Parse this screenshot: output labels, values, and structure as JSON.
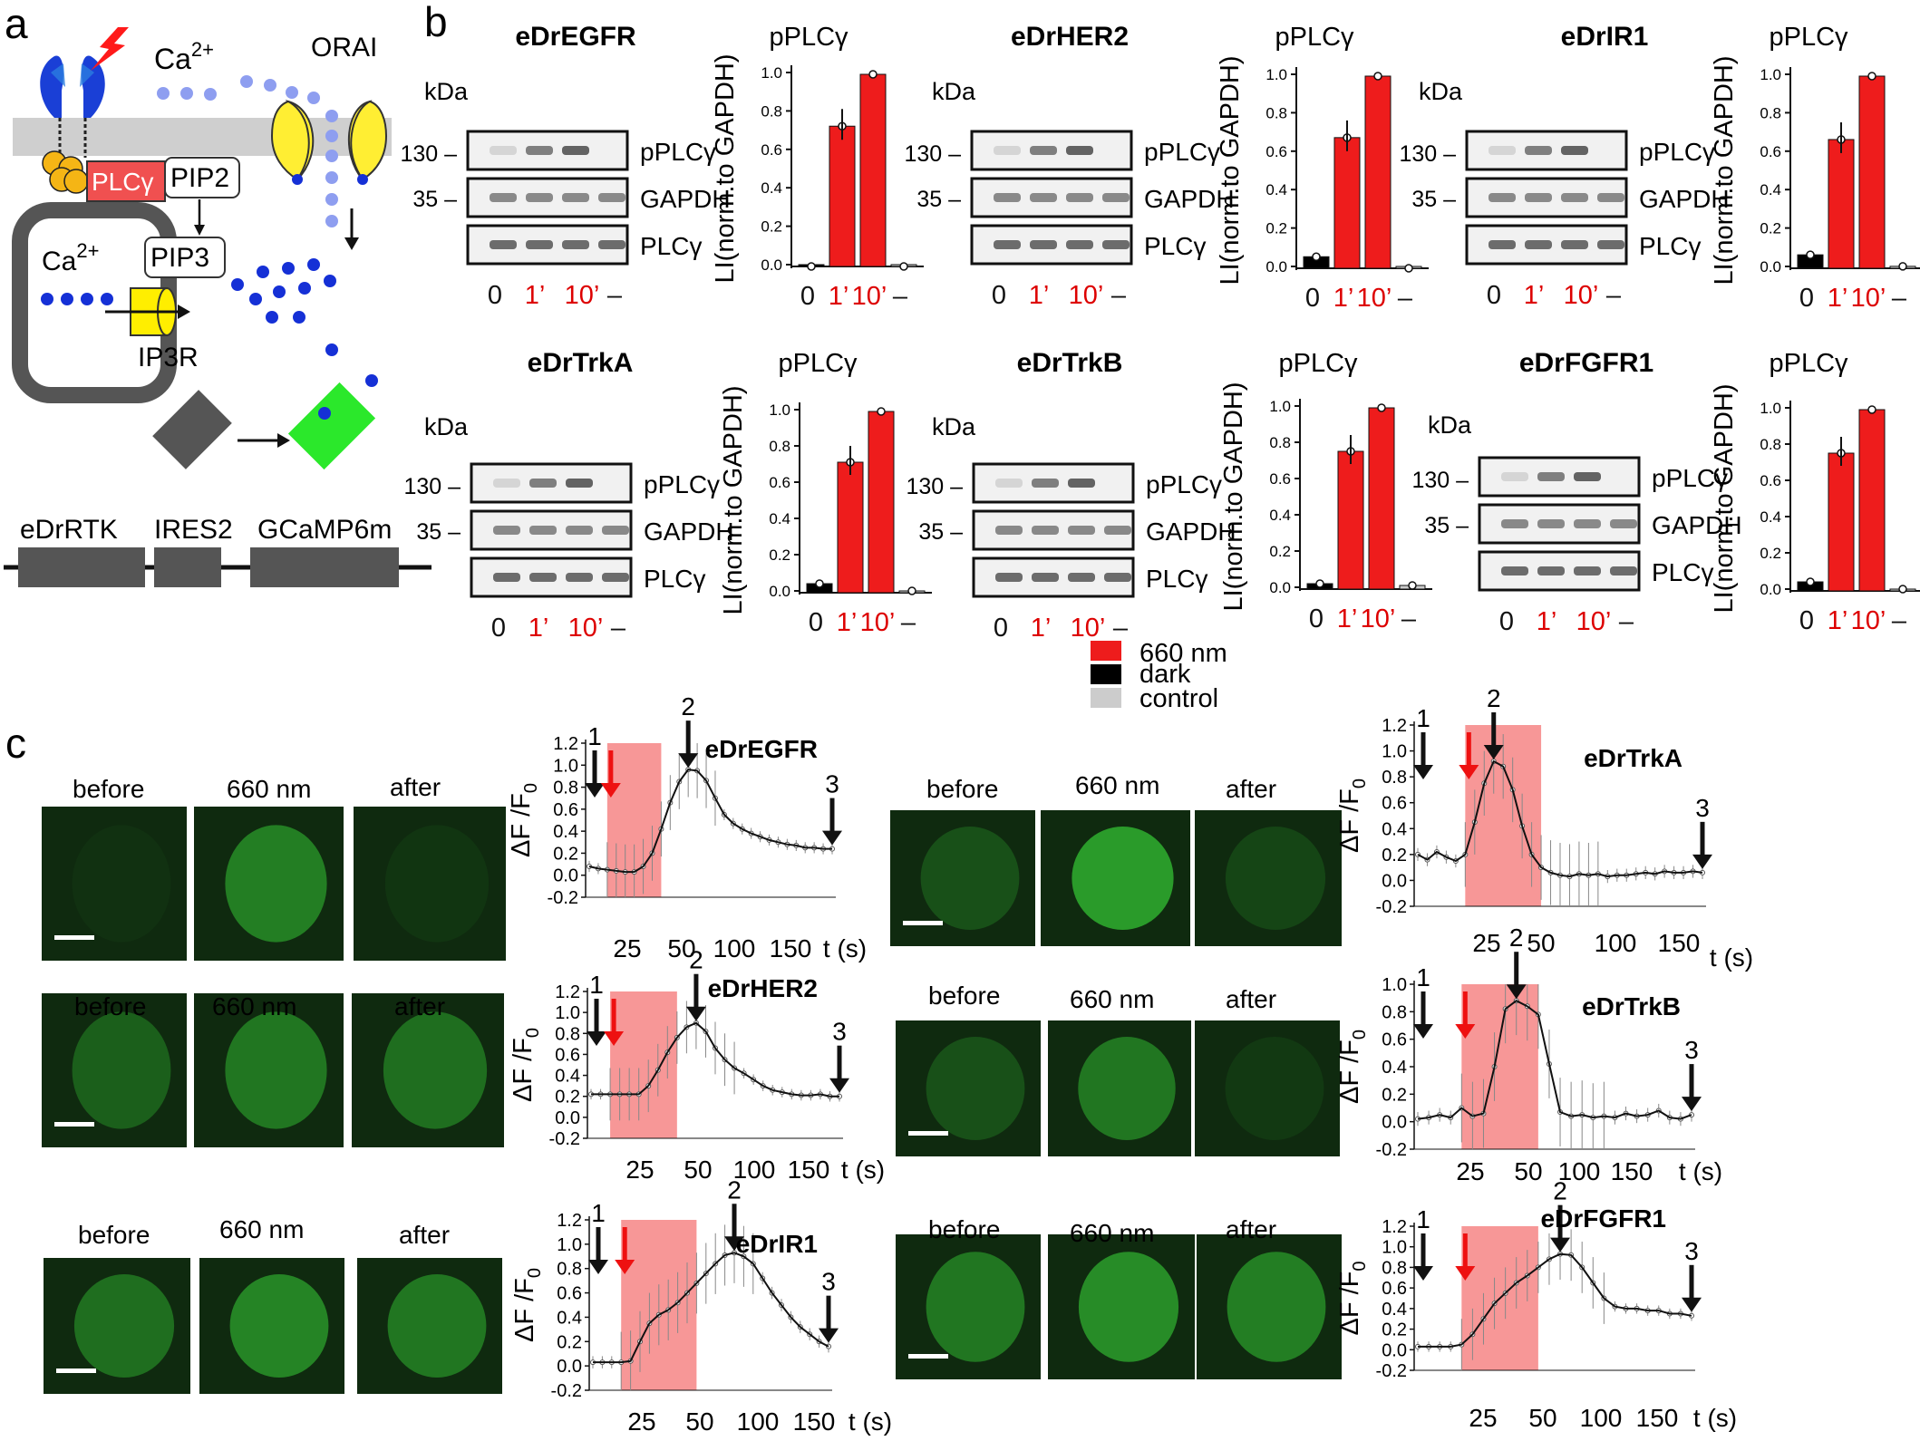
{
  "panel_a": {
    "label": "a",
    "ca_top": "Ca",
    "ca_top_sup": "2+",
    "orai": "ORAI",
    "plc": "PLCγ",
    "pip2": "PIP2",
    "pip3": "PIP3",
    "ca_store": "Ca",
    "ca_store_sup": "2+",
    "ip3r": "IP3R",
    "construct": [
      "eDrRTK",
      "IRES2",
      "GCaMP6m"
    ]
  },
  "panel_b": {
    "label": "b",
    "kda": "kDa",
    "mw_130": "130",
    "mw_35": "35",
    "band_labels": [
      "pPLCγ",
      "GAPDH",
      "PLCγ"
    ],
    "lane_labels": [
      "0",
      "1’",
      "10’",
      "–"
    ],
    "chart_title": "pPLCγ",
    "y_label": "LI(norm.to GAPDH)",
    "legend": [
      {
        "label": "660 nm",
        "color": "#ee1c1c"
      },
      {
        "label": "dark",
        "color": "#000000"
      },
      {
        "label": "control",
        "color": "#cccccc"
      }
    ]
  },
  "panel_c": {
    "label": "c",
    "image_labels": [
      "before",
      "660 nm",
      "after"
    ],
    "y_label": "ΔF /F",
    "y_sub": "0",
    "x_unit": "t (s)",
    "arrow_labels": [
      "1",
      "2",
      "3"
    ]
  },
  "chart_data": [
    {
      "type": "bar",
      "title": "pPLCγ",
      "receptor": "eDrEGFR",
      "categories": [
        "0",
        "1’",
        "10’",
        "–"
      ],
      "values": [
        0.0,
        0.73,
        1.0,
        0.0
      ],
      "ylabel": "LI(norm.to GAPDH)",
      "ylim": [
        0,
        1.0
      ]
    },
    {
      "type": "bar",
      "title": "pPLCγ",
      "receptor": "eDrHER2",
      "categories": [
        "0",
        "1’",
        "10’",
        "–"
      ],
      "values": [
        0.06,
        0.68,
        1.0,
        0.0
      ],
      "ylabel": "LI(norm.to GAPDH)",
      "ylim": [
        0,
        1.0
      ]
    },
    {
      "type": "bar",
      "title": "pPLCγ",
      "receptor": "eDrIR1",
      "categories": [
        "0",
        "1’",
        "10’",
        "–"
      ],
      "values": [
        0.07,
        0.67,
        1.0,
        0.01
      ],
      "ylabel": "LI(norm.to GAPDH)",
      "ylim": [
        0,
        1.0
      ]
    },
    {
      "type": "bar",
      "title": "pPLCγ",
      "receptor": "eDrTrkA",
      "categories": [
        "0",
        "1’",
        "10’",
        "–"
      ],
      "values": [
        0.05,
        0.72,
        1.0,
        0.01
      ],
      "ylabel": "LI(norm.to GAPDH)",
      "ylim": [
        0,
        1.0
      ]
    },
    {
      "type": "bar",
      "title": "pPLCγ",
      "receptor": "eDrTrkB",
      "categories": [
        "0",
        "1’",
        "10’",
        "–"
      ],
      "values": [
        0.03,
        0.76,
        1.0,
        0.02
      ],
      "ylabel": "LI(norm.to GAPDH)",
      "ylim": [
        0,
        1.0
      ]
    },
    {
      "type": "bar",
      "title": "pPLCγ",
      "receptor": "eDrFGFR1",
      "categories": [
        "0",
        "1’",
        "10’",
        "–"
      ],
      "values": [
        0.05,
        0.76,
        1.0,
        0.01
      ],
      "ylabel": "LI(norm.to GAPDH)",
      "ylim": [
        0,
        1.0
      ]
    },
    {
      "type": "line",
      "title": "eDrEGFR",
      "xticks": [
        "25",
        "50",
        "100",
        "150"
      ],
      "yticks": [
        -0.2,
        0.0,
        0.2,
        0.4,
        0.6,
        0.8,
        1.0,
        1.2
      ],
      "ylim": [
        -0.2,
        1.2
      ],
      "light_on": [
        2,
        8
      ],
      "values": [
        0.08,
        0.06,
        0.05,
        0.04,
        0.03,
        0.03,
        0.08,
        0.2,
        0.42,
        0.66,
        0.85,
        0.96,
        0.95,
        0.86,
        0.7,
        0.55,
        0.47,
        0.42,
        0.38,
        0.35,
        0.32,
        0.3,
        0.28,
        0.27,
        0.25,
        0.25,
        0.24,
        0.24
      ]
    },
    {
      "type": "line",
      "title": "eDrHER2",
      "xticks": [
        "25",
        "50",
        "100",
        "150"
      ],
      "yticks": [
        -0.2,
        0.0,
        0.2,
        0.4,
        0.6,
        0.8,
        1.0,
        1.2
      ],
      "ylim": [
        -0.2,
        1.2
      ],
      "light_on": [
        2,
        9
      ],
      "values": [
        0.22,
        0.22,
        0.22,
        0.22,
        0.22,
        0.22,
        0.3,
        0.45,
        0.62,
        0.76,
        0.86,
        0.9,
        0.82,
        0.66,
        0.55,
        0.47,
        0.42,
        0.36,
        0.3,
        0.26,
        0.24,
        0.22,
        0.21,
        0.21,
        0.22,
        0.2,
        0.2
      ]
    },
    {
      "type": "line",
      "title": "eDrIR1",
      "xticks": [
        "25",
        "50",
        "100",
        "150"
      ],
      "yticks": [
        -0.2,
        0.0,
        0.2,
        0.4,
        0.6,
        0.8,
        1.0,
        1.2
      ],
      "ylim": [
        -0.2,
        1.2
      ],
      "light_on": [
        3,
        11
      ],
      "values": [
        0.03,
        0.03,
        0.03,
        0.03,
        0.04,
        0.2,
        0.35,
        0.42,
        0.46,
        0.52,
        0.6,
        0.68,
        0.76,
        0.84,
        0.91,
        0.93,
        0.9,
        0.84,
        0.72,
        0.6,
        0.5,
        0.4,
        0.32,
        0.26,
        0.2,
        0.16
      ]
    },
    {
      "type": "line",
      "title": "eDrTrkA",
      "xticks": [
        "25",
        "50",
        "100",
        "150"
      ],
      "yticks": [
        -0.2,
        0.0,
        0.2,
        0.4,
        0.6,
        0.8,
        1.0,
        1.2
      ],
      "ylim": [
        -0.2,
        1.2
      ],
      "light_on": [
        5,
        13
      ],
      "values": [
        0.2,
        0.16,
        0.22,
        0.18,
        0.15,
        0.2,
        0.45,
        0.75,
        0.92,
        0.88,
        0.7,
        0.42,
        0.2,
        0.1,
        0.06,
        0.04,
        0.03,
        0.05,
        0.04,
        0.05,
        0.03,
        0.04,
        0.04,
        0.05,
        0.06,
        0.05,
        0.07,
        0.06,
        0.06,
        0.07,
        0.06
      ]
    },
    {
      "type": "line",
      "title": "eDrTrkB",
      "xticks": [
        "25",
        "50",
        "100",
        "150"
      ],
      "yticks": [
        -0.2,
        0.0,
        0.2,
        0.4,
        0.6,
        0.8,
        1.0,
        1.2
      ],
      "ylim": [
        -0.2,
        1.0
      ],
      "light_on": [
        4,
        11
      ],
      "values": [
        0.02,
        0.03,
        0.05,
        0.03,
        0.1,
        0.04,
        0.06,
        0.4,
        0.82,
        0.88,
        0.84,
        0.78,
        0.42,
        0.07,
        0.04,
        0.05,
        0.03,
        0.04,
        0.03,
        0.06,
        0.04,
        0.05,
        0.08,
        0.03,
        0.02,
        0.05
      ]
    },
    {
      "type": "line",
      "title": "eDrFGFR1",
      "xticks": [
        "25",
        "50",
        "100",
        "150"
      ],
      "yticks": [
        -0.2,
        0.0,
        0.2,
        0.4,
        0.6,
        0.8,
        1.0,
        1.2
      ],
      "ylim": [
        -0.2,
        1.2
      ],
      "light_on": [
        4,
        11
      ],
      "values": [
        0.03,
        0.03,
        0.03,
        0.03,
        0.05,
        0.15,
        0.3,
        0.45,
        0.55,
        0.65,
        0.72,
        0.8,
        0.88,
        0.93,
        0.92,
        0.8,
        0.65,
        0.5,
        0.42,
        0.4,
        0.4,
        0.38,
        0.38,
        0.35,
        0.35,
        0.33
      ]
    }
  ]
}
